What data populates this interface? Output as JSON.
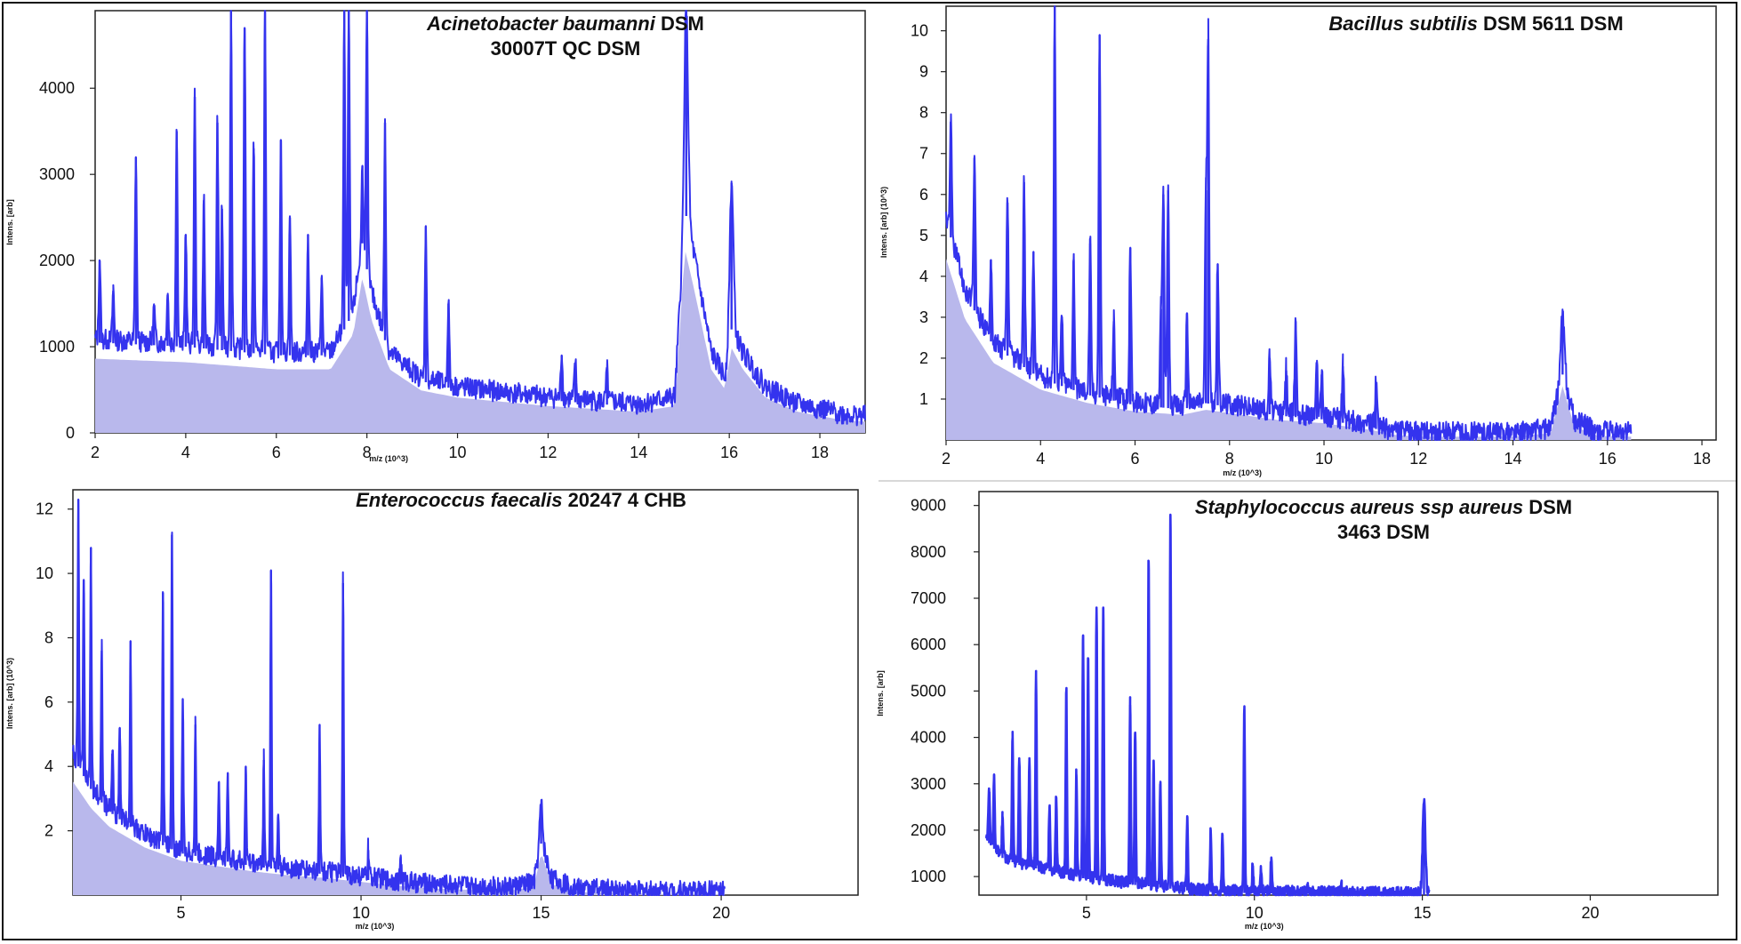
{
  "figure": {
    "panel_count": 4
  },
  "chart_data": [
    {
      "id": "acinetobacter",
      "type": "line",
      "title_italic": "Acinetobacter baumanni",
      "title_rest": " DSM",
      "title_line2": "30007T QC DSM",
      "xlabel": "m/z (10^3)",
      "ylabel": "Intens. [arb]",
      "xlim": [
        2,
        19
      ],
      "ylim": [
        0,
        4900
      ],
      "xticks": [
        2,
        4,
        6,
        8,
        10,
        12,
        14,
        16,
        18
      ],
      "yticks": [
        0,
        1000,
        2000,
        3000,
        4000
      ],
      "area_fill": true,
      "baseline": [
        [
          2,
          1050
        ],
        [
          4,
          1000
        ],
        [
          6,
          900
        ],
        [
          7.2,
          900
        ],
        [
          7.7,
          1400
        ],
        [
          7.9,
          2200
        ],
        [
          8.1,
          1600
        ],
        [
          8.5,
          900
        ],
        [
          9.2,
          600
        ],
        [
          10,
          500
        ],
        [
          12,
          380
        ],
        [
          14,
          300
        ],
        [
          14.8,
          380
        ],
        [
          15.02,
          2600
        ],
        [
          15.2,
          2100
        ],
        [
          15.6,
          900
        ],
        [
          15.9,
          620
        ],
        [
          16.05,
          1200
        ],
        [
          16.3,
          900
        ],
        [
          16.8,
          500
        ],
        [
          17.5,
          300
        ],
        [
          18.5,
          180
        ],
        [
          19,
          160
        ]
      ],
      "peaks": [
        [
          2.1,
          2000
        ],
        [
          2.4,
          1650
        ],
        [
          2.9,
          3200
        ],
        [
          3.3,
          1450
        ],
        [
          3.6,
          1600
        ],
        [
          3.8,
          3500
        ],
        [
          4.0,
          2300
        ],
        [
          4.2,
          3900
        ],
        [
          4.4,
          2700
        ],
        [
          4.7,
          3600
        ],
        [
          4.8,
          2600
        ],
        [
          5.0,
          4900
        ],
        [
          5.3,
          4700
        ],
        [
          5.5,
          3300
        ],
        [
          5.75,
          4900
        ],
        [
          6.1,
          3400
        ],
        [
          6.3,
          2500
        ],
        [
          6.7,
          2300
        ],
        [
          7.0,
          1800
        ],
        [
          7.5,
          4900
        ],
        [
          7.6,
          4900
        ],
        [
          7.9,
          3100
        ],
        [
          8.0,
          4900
        ],
        [
          8.4,
          3600
        ],
        [
          9.3,
          2400
        ],
        [
          9.8,
          1500
        ],
        [
          12.3,
          900
        ],
        [
          12.6,
          800
        ],
        [
          13.3,
          700
        ],
        [
          15.05,
          4900
        ],
        [
          16.05,
          2900
        ]
      ]
    },
    {
      "id": "bacillus",
      "type": "line",
      "title_italic": "Bacillus subtilis",
      "title_rest": " DSM 5611 DSM",
      "title_line2": "",
      "xlabel": "m/z (10^3)",
      "ylabel": "Intens. [arb] (10^3)",
      "xlim": [
        2,
        18.3
      ],
      "ylim": [
        0,
        10.6
      ],
      "xticks": [
        2,
        4,
        6,
        8,
        10,
        12,
        14,
        16,
        18
      ],
      "yticks": [
        1,
        2,
        3,
        4,
        5,
        6,
        7,
        8,
        9,
        10
      ],
      "area_fill": true,
      "curve_end": 16.5,
      "baseline": [
        [
          2,
          5.4
        ],
        [
          2.4,
          3.6
        ],
        [
          3,
          2.3
        ],
        [
          4,
          1.5
        ],
        [
          5,
          1.1
        ],
        [
          6,
          0.85
        ],
        [
          7,
          0.75
        ],
        [
          7.5,
          0.9
        ],
        [
          8,
          0.8
        ],
        [
          9,
          0.6
        ],
        [
          10,
          0.5
        ],
        [
          11,
          0.3
        ],
        [
          11.5,
          0.15
        ],
        [
          12,
          0.1
        ],
        [
          14,
          0.1
        ],
        [
          14.8,
          0.2
        ],
        [
          15.05,
          1.6
        ],
        [
          15.3,
          0.4
        ],
        [
          15.8,
          0.12
        ],
        [
          16.5,
          0.1
        ]
      ],
      "peaks": [
        [
          2.1,
          7.7
        ],
        [
          2.6,
          6.9
        ],
        [
          2.95,
          4.4
        ],
        [
          3.3,
          5.8
        ],
        [
          3.65,
          6.3
        ],
        [
          3.85,
          4.6
        ],
        [
          4.3,
          10.6
        ],
        [
          4.45,
          3.0
        ],
        [
          4.7,
          4.4
        ],
        [
          5.05,
          4.8
        ],
        [
          5.25,
          9.9
        ],
        [
          5.55,
          2.9
        ],
        [
          5.9,
          4.7
        ],
        [
          6.55,
          3.2
        ],
        [
          6.6,
          6.0
        ],
        [
          6.7,
          6.1
        ],
        [
          7.1,
          3.1
        ],
        [
          7.5,
          6.1
        ],
        [
          7.55,
          9.8
        ],
        [
          7.75,
          4.3
        ],
        [
          8.85,
          2.0
        ],
        [
          9.2,
          1.7
        ],
        [
          9.4,
          2.9
        ],
        [
          9.85,
          1.8
        ],
        [
          9.95,
          1.6
        ],
        [
          10.4,
          1.8
        ],
        [
          11.1,
          1.3
        ],
        [
          15.05,
          3.0
        ]
      ]
    },
    {
      "id": "enterococcus",
      "type": "line",
      "title_italic": "Enterococcus faecalis",
      "title_rest": " 20247 4 CHB",
      "title_line2": "",
      "xlabel": "m/z (10^3)",
      "ylabel": "Intens. [arb] (10^3)",
      "xlim": [
        2,
        23.8
      ],
      "ylim": [
        0,
        12.6
      ],
      "xticks": [
        5,
        10,
        15,
        20
      ],
      "yticks": [
        2,
        4,
        6,
        8,
        10,
        12
      ],
      "area_fill": true,
      "curve_end": 20.1,
      "baseline": [
        [
          2,
          4.3
        ],
        [
          2.5,
          3.3
        ],
        [
          3,
          2.6
        ],
        [
          4,
          1.8
        ],
        [
          5,
          1.3
        ],
        [
          6,
          1.1
        ],
        [
          7,
          0.9
        ],
        [
          8,
          0.75
        ],
        [
          9,
          0.65
        ],
        [
          10,
          0.5
        ],
        [
          11,
          0.35
        ],
        [
          12,
          0.25
        ],
        [
          14,
          0.15
        ],
        [
          14.8,
          0.3
        ],
        [
          15.0,
          1.6
        ],
        [
          15.3,
          0.4
        ],
        [
          16,
          0.12
        ],
        [
          18,
          0.05
        ],
        [
          20.1,
          0.03
        ]
      ],
      "peaks": [
        [
          2.15,
          12.3
        ],
        [
          2.3,
          9.8
        ],
        [
          2.5,
          10.8
        ],
        [
          2.8,
          7.6
        ],
        [
          3.1,
          4.5
        ],
        [
          3.3,
          5.2
        ],
        [
          3.6,
          7.9
        ],
        [
          4.5,
          9.4
        ],
        [
          4.75,
          11.2
        ],
        [
          5.05,
          6.1
        ],
        [
          5.4,
          5.3
        ],
        [
          6.05,
          3.5
        ],
        [
          6.3,
          3.8
        ],
        [
          6.8,
          4.0
        ],
        [
          7.3,
          4.2
        ],
        [
          7.5,
          10.1
        ],
        [
          7.7,
          2.5
        ],
        [
          8.85,
          5.3
        ],
        [
          9.5,
          9.7
        ],
        [
          10.2,
          1.4
        ],
        [
          11.1,
          1.2
        ],
        [
          15.0,
          2.8
        ]
      ]
    },
    {
      "id": "staphylococcus",
      "type": "line",
      "title_italic": "Staphylococcus aureus ssp aureus",
      "title_rest": " DSM",
      "title_line2": "3463 DSM",
      "xlabel": "m/z (10^3)",
      "ylabel": "Intens. [arb]",
      "xlim": [
        1.8,
        23.8
      ],
      "ylim": [
        600,
        9300
      ],
      "xticks": [
        5,
        10,
        15,
        20
      ],
      "yticks": [
        1000,
        2000,
        3000,
        4000,
        5000,
        6000,
        7000,
        8000,
        9000
      ],
      "area_fill": false,
      "curve_end": 15.2,
      "baseline": [
        [
          2,
          1800
        ],
        [
          2.5,
          1400
        ],
        [
          3,
          1250
        ],
        [
          4,
          1100
        ],
        [
          5,
          950
        ],
        [
          6,
          850
        ],
        [
          7,
          780
        ],
        [
          8,
          700
        ],
        [
          9,
          650
        ],
        [
          15.2,
          600
        ]
      ],
      "peaks": [
        [
          2.1,
          2900
        ],
        [
          2.25,
          3200
        ],
        [
          2.5,
          2300
        ],
        [
          2.8,
          4000
        ],
        [
          3.0,
          3500
        ],
        [
          3.3,
          3500
        ],
        [
          3.5,
          5300
        ],
        [
          3.9,
          2500
        ],
        [
          4.1,
          2700
        ],
        [
          4.4,
          5000
        ],
        [
          4.7,
          3200
        ],
        [
          4.9,
          6200
        ],
        [
          5.05,
          5700
        ],
        [
          5.3,
          6800
        ],
        [
          5.5,
          6800
        ],
        [
          6.3,
          4700
        ],
        [
          6.45,
          4100
        ],
        [
          6.85,
          7800
        ],
        [
          7.0,
          3500
        ],
        [
          7.2,
          3000
        ],
        [
          7.5,
          8800
        ],
        [
          8.0,
          2300
        ],
        [
          8.7,
          2000
        ],
        [
          9.05,
          1900
        ],
        [
          9.7,
          4600
        ],
        [
          9.95,
          1200
        ],
        [
          10.2,
          1100
        ],
        [
          10.5,
          1300
        ],
        [
          11.6,
          800
        ],
        [
          12.6,
          750
        ],
        [
          15.05,
          2600
        ]
      ]
    }
  ]
}
